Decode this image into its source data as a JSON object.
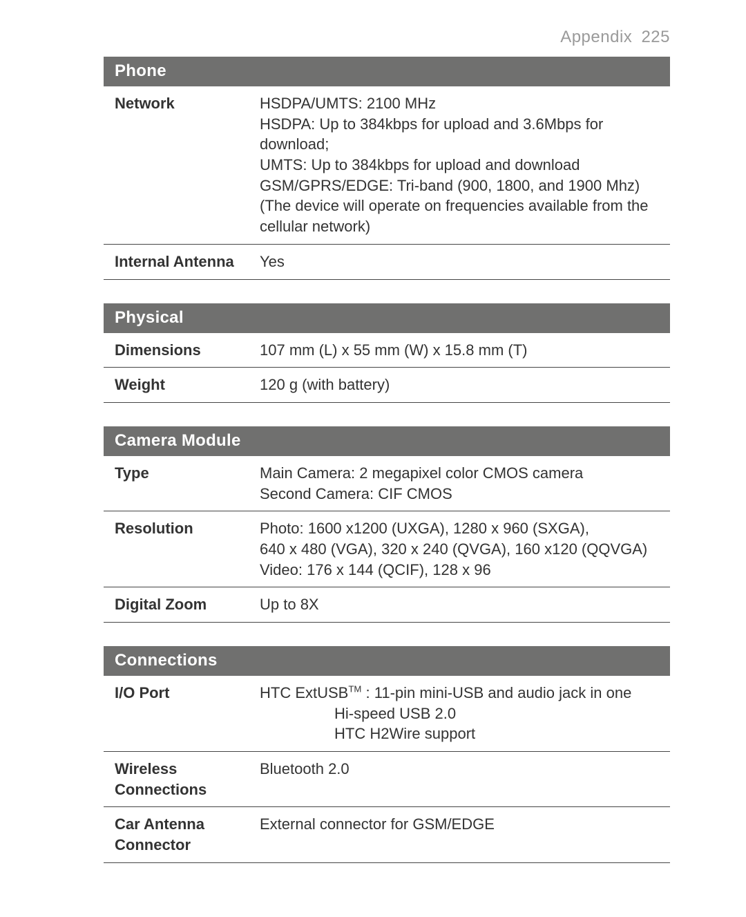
{
  "header": {
    "title": "Appendix",
    "page_number": "225"
  },
  "colors": {
    "section_bg": "#70706f",
    "section_fg": "#ffffff",
    "text": "#333333",
    "header_text": "#9a9a9a",
    "rule": "#444444",
    "page_bg": "#ffffff"
  },
  "typography": {
    "body_fontsize_pt": 16,
    "header_fontsize_pt": 18,
    "section_title_fontsize_pt": 18,
    "label_weight": 700
  },
  "sections": [
    {
      "title": "Phone",
      "rows": [
        {
          "label": "Network",
          "value": "HSDPA/UMTS: 2100 MHz\nHSDPA: Up to 384kbps for upload and 3.6Mbps for download;\nUMTS: Up to 384kbps for upload and download\nGSM/GPRS/EDGE: Tri-band (900, 1800, and 1900 Mhz)\n(The device will operate on frequencies available from the cellular network)"
        },
        {
          "label": "Internal Antenna",
          "value": "Yes"
        }
      ]
    },
    {
      "title": "Physical",
      "rows": [
        {
          "label": "Dimensions",
          "value": "107 mm (L) x 55 mm (W) x 15.8 mm (T)"
        },
        {
          "label": "Weight",
          "value": "120 g (with battery)"
        }
      ]
    },
    {
      "title": "Camera Module",
      "rows": [
        {
          "label": "Type",
          "value": "Main Camera: 2 megapixel color CMOS camera\nSecond Camera: CIF CMOS"
        },
        {
          "label": "Resolution",
          "value": "Photo: 1600 x1200 (UXGA), 1280 x 960 (SXGA),\n640 x 480 (VGA), 320 x 240 (QVGA), 160 x120 (QQVGA)\nVideo: 176 x 144 (QCIF), 128 x 96"
        },
        {
          "label": "Digital Zoom",
          "value": "Up to 8X"
        }
      ]
    },
    {
      "title": "Connections",
      "rows": [
        {
          "label": "I/O Port",
          "value_html": "HTC ExtUSB<sup>TM</sup> : 11-pin mini-USB and audio jack in one<span class=\"sub\">Hi-speed USB 2.0</span><span class=\"sub\">HTC H2Wire support</span>"
        },
        {
          "label": "Wireless Connections",
          "value": "Bluetooth 2.0"
        },
        {
          "label": "Car Antenna Connector",
          "value": "External connector for GSM/EDGE"
        }
      ]
    }
  ]
}
